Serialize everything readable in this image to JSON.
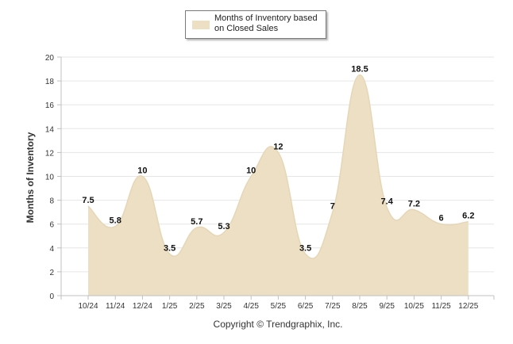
{
  "chart_data": {
    "type": "area",
    "title": "",
    "xlabel": "",
    "ylabel": "Months of Inventory",
    "ylim": [
      0,
      20
    ],
    "yticks": [
      0,
      2,
      4,
      6,
      8,
      10,
      12,
      14,
      16,
      18,
      20
    ],
    "ytick_labels": [
      "0",
      "2",
      "4",
      "6",
      "8",
      "10",
      "12",
      "14",
      "16",
      "18",
      "20"
    ],
    "categories": [
      "10/24",
      "11/24",
      "12/24",
      "1/25",
      "2/25",
      "3/25",
      "4/25",
      "5/25",
      "6/25",
      "7/25",
      "8/25",
      "9/25",
      "10/25",
      "11/25",
      "12/25"
    ],
    "series": [
      {
        "name": "Months of Inventory based on Closed Sales",
        "values": [
          7.5,
          5.8,
          10,
          3.5,
          5.7,
          5.3,
          10,
          12,
          3.5,
          7,
          18.5,
          7.4,
          7.2,
          6,
          6.2
        ],
        "labels": [
          "7.5",
          "5.8",
          "10",
          "3.5",
          "5.7",
          "5.3",
          "10",
          "12",
          "3.5",
          "7",
          "18.5",
          "7.4",
          "7.2",
          "6",
          "6.2"
        ]
      }
    ],
    "legend": {
      "position": "top-center",
      "entries": [
        "Months of Inventory based on Closed Sales"
      ]
    },
    "grid": true,
    "colors": {
      "fill": "#ecdfc3",
      "stroke": "#e6d6b6",
      "grid": "#e6e6e6",
      "axis": "#c0c0c0"
    }
  },
  "legend_label": "Months of Inventory based on Closed Sales",
  "footer": "Copyright © Trendgraphix, Inc."
}
